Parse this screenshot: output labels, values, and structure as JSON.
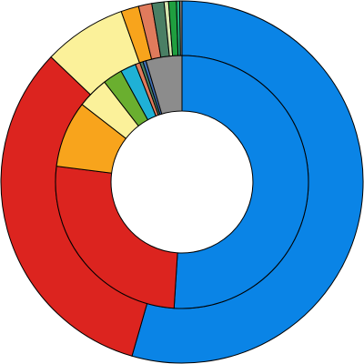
{
  "chart_data": {
    "type": "pie",
    "variant": "nested-donut",
    "start_angle_deg": 0,
    "direction": "clockwise",
    "rings": [
      {
        "name": "",
        "position": "outer",
        "slices": [
          {
            "value": 55.0,
            "color": "#0a84e6"
          },
          {
            "value": 33.0,
            "color": "#dc241f"
          },
          {
            "value": 7.5,
            "color": "#fbf19a"
          },
          {
            "value": 1.6,
            "color": "#f8a41c"
          },
          {
            "value": 1.2,
            "color": "#e07b5c"
          },
          {
            "value": 1.1,
            "color": "#4a7f64"
          },
          {
            "value": 0.4,
            "color": "#d8e8b0"
          },
          {
            "value": 0.7,
            "color": "#1f9f3f"
          },
          {
            "value": 0.3,
            "color": "#24b27a"
          },
          {
            "value": 0.2,
            "color": "#8a8a8a"
          }
        ]
      },
      {
        "name": "",
        "position": "inner",
        "slices": [
          {
            "value": 51.0,
            "color": "#0a84e6"
          },
          {
            "value": 26.0,
            "color": "#dc241f"
          },
          {
            "value": 8.5,
            "color": "#f8a41c"
          },
          {
            "value": 4.0,
            "color": "#fbf19a"
          },
          {
            "value": 2.5,
            "color": "#6aaf2f"
          },
          {
            "value": 2.0,
            "color": "#1fb1d6"
          },
          {
            "value": 0.6,
            "color": "#e07b5c"
          },
          {
            "value": 0.4,
            "color": "#4a7f64"
          },
          {
            "value": 0.4,
            "color": "#3f6fb5"
          },
          {
            "value": 4.6,
            "color": "#8c8c8c"
          }
        ]
      }
    ],
    "title": "",
    "legend": "none"
  }
}
